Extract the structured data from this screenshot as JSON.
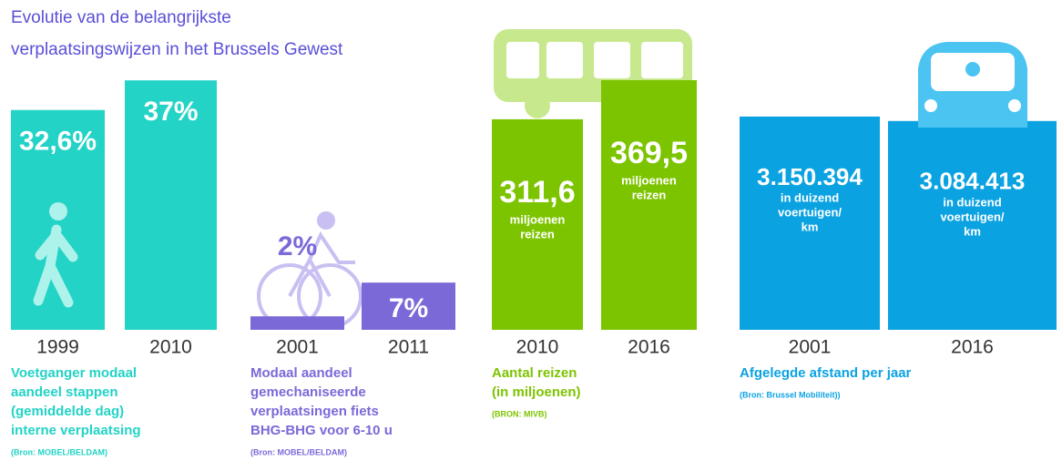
{
  "title": [
    "Evolutie van de belangrijkste",
    "verplaatsingswijzen in het Brussels Gewest"
  ],
  "chart_data": [
    {
      "type": "bar",
      "categories": [
        "1999",
        "2010"
      ],
      "values": [
        32.6,
        37
      ],
      "value_labels": [
        "32,6%",
        "37%"
      ],
      "color": "#22d3c6",
      "caption": [
        "Voetganger modaal",
        "aandeel stappen",
        "(gemiddelde dag)",
        "interne verplaatsing"
      ],
      "source": "(Bron: MOBEL/BELDAM)"
    },
    {
      "type": "bar",
      "categories": [
        "2001",
        "2011"
      ],
      "values": [
        2,
        7
      ],
      "value_labels": [
        "2%",
        "7%"
      ],
      "color": "#7b69d8",
      "caption": [
        "Modaal aandeel",
        "gemechaniseerde",
        "verplaatsingen fiets",
        "BHG-BHG voor 6-10 u"
      ],
      "source": "(Bron: MOBEL/BELDAM)"
    },
    {
      "type": "bar",
      "categories": [
        "2010",
        "2016"
      ],
      "values": [
        311.6,
        369.5
      ],
      "value_labels": [
        "311,6",
        "369,5"
      ],
      "color": "#7dc400",
      "unit_lines": [
        "miljoenen",
        "reizen"
      ],
      "caption": [
        "Aantal reizen",
        "(in miljoenen)"
      ],
      "source": "(BRON: MIVB)"
    },
    {
      "type": "bar",
      "categories": [
        "2001",
        "2016"
      ],
      "values": [
        3150394,
        3084413
      ],
      "value_labels": [
        "3.150.394",
        "3.084.413"
      ],
      "color": "#0ba2e2",
      "unit_lines": [
        "in duizend",
        "voertuigen/",
        "km"
      ],
      "caption": [
        "Afgelegde afstand per jaar"
      ],
      "source": "(Bron: Brussel Mobiliteit))"
    }
  ]
}
